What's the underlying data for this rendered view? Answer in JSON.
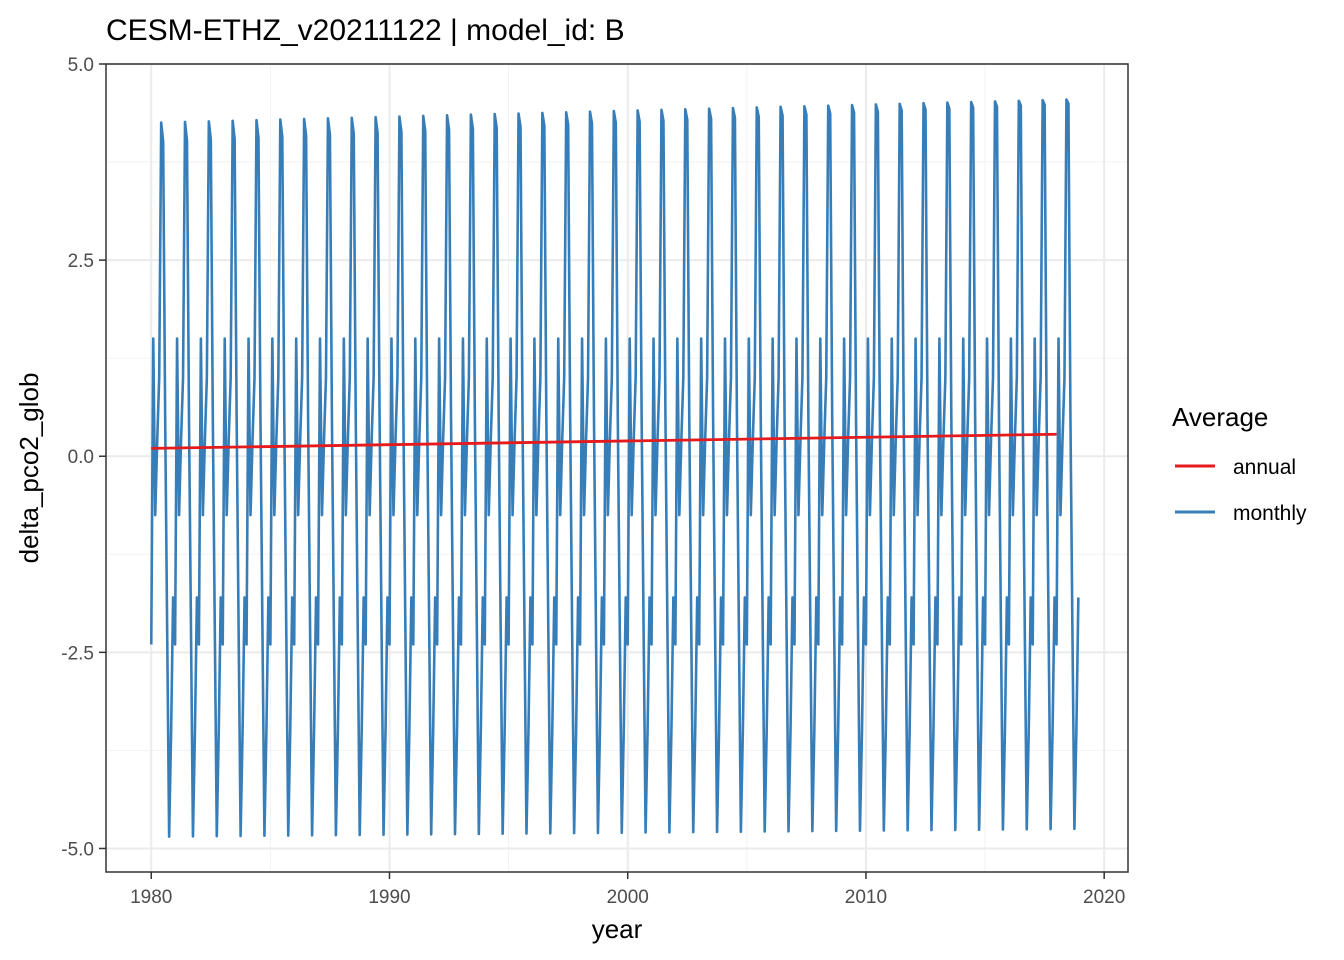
{
  "chart_data": {
    "type": "line",
    "title": "CESM-ETHZ_v20211122 | model_id: B",
    "xlabel": "year",
    "ylabel": "delta_pco2_glob",
    "xlim": [
      1978.1,
      2021.0
    ],
    "ylim": [
      -5.3,
      5.0
    ],
    "x_ticks": [
      1980,
      1990,
      2000,
      2010,
      2020
    ],
    "x_tick_labels": [
      "1980",
      "1990",
      "2000",
      "2010",
      "2020"
    ],
    "y_ticks": [
      -5.0,
      -2.5,
      0.0,
      2.5,
      5.0
    ],
    "y_tick_labels": [
      "-5.0",
      "-2.5",
      "0.0",
      "2.5",
      "5.0"
    ],
    "grid": true,
    "legend": {
      "title": "Average",
      "position": "right",
      "entries": [
        "annual",
        "monthly"
      ]
    },
    "colors": {
      "annual": "#e41a1c",
      "monthly": "#377eb8"
    },
    "series": [
      {
        "name": "annual",
        "x": [
          1980.0,
          2018.0
        ],
        "y": [
          0.1,
          0.28
        ]
      },
      {
        "name": "monthly",
        "x_start": 1980.0,
        "x_end": 2018.875,
        "month_step": 0.08333333,
        "seasonal_cycle": [
          -2.4,
          1.5,
          -0.75,
          0.2,
          1.0,
          4.25,
          4.0,
          0.5,
          -2.2,
          -4.85,
          -3.5,
          -1.8
        ],
        "seasonal_peak_end": 4.55,
        "seasonal_trough_end": -4.75
      }
    ]
  }
}
